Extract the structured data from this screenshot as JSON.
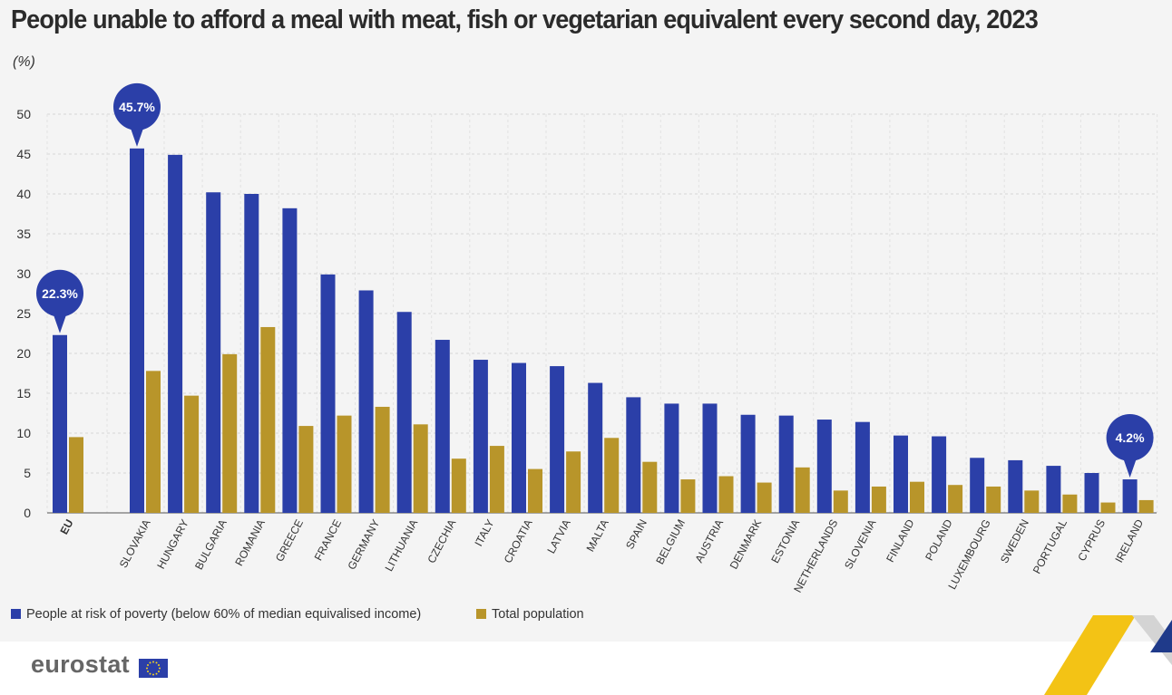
{
  "title": "People unable to afford a meal with meat, fish or vegetarian equivalent every second day, 2023",
  "unit": "(%)",
  "colors": {
    "poverty": "#2b3fa8",
    "total": "#b8952a",
    "bubble": "#2b3fa8",
    "panel": "#f4f4f4"
  },
  "chart_data": {
    "type": "bar",
    "title": "People unable to afford a meal with meat, fish or vegetarian equivalent every second day, 2023",
    "ylabel": "(%)",
    "xlabel": "",
    "ylim": [
      0,
      50
    ],
    "yticks": [
      0,
      5,
      10,
      15,
      20,
      25,
      30,
      35,
      40,
      45,
      50
    ],
    "categories": [
      "EU",
      "SLOVAKIA",
      "HUNGARY",
      "BULGARIA",
      "ROMANIA",
      "GREECE",
      "FRANCE",
      "GERMANY",
      "LITHUANIA",
      "CZECHIA",
      "ITALY",
      "CROATIA",
      "LATVIA",
      "MALTA",
      "SPAIN",
      "BELGIUM",
      "AUSTRIA",
      "DENMARK",
      "ESTONIA",
      "NETHERLANDS",
      "SLOVENIA",
      "FINLAND",
      "POLAND",
      "LUXEMBOURG",
      "SWEDEN",
      "PORTUGAL",
      "CYPRUS",
      "IRELAND"
    ],
    "series": [
      {
        "name": "People at risk of poverty (below 60% of median equivalised income)",
        "values": [
          22.3,
          45.7,
          44.9,
          40.2,
          40.0,
          38.2,
          29.9,
          27.9,
          25.2,
          21.7,
          19.2,
          18.8,
          18.4,
          16.3,
          14.5,
          13.7,
          13.7,
          12.3,
          12.2,
          11.7,
          11.4,
          9.7,
          9.6,
          6.9,
          6.6,
          5.9,
          5.0,
          4.2
        ]
      },
      {
        "name": "Total population",
        "values": [
          9.5,
          17.8,
          14.7,
          19.9,
          23.3,
          10.9,
          12.2,
          13.3,
          11.1,
          6.8,
          8.4,
          5.5,
          7.7,
          9.4,
          6.4,
          4.2,
          4.6,
          3.8,
          5.7,
          2.8,
          3.3,
          3.9,
          3.5,
          3.3,
          2.8,
          2.3,
          1.3,
          1.6
        ]
      }
    ],
    "callouts": [
      {
        "category": "EU",
        "label": "22.3%"
      },
      {
        "category": "SLOVAKIA",
        "label": "45.7%"
      },
      {
        "category": "IRELAND",
        "label": "4.2%"
      }
    ],
    "legend_position": "bottom-left",
    "grid": true
  },
  "footer": {
    "logo": "eurostat"
  }
}
